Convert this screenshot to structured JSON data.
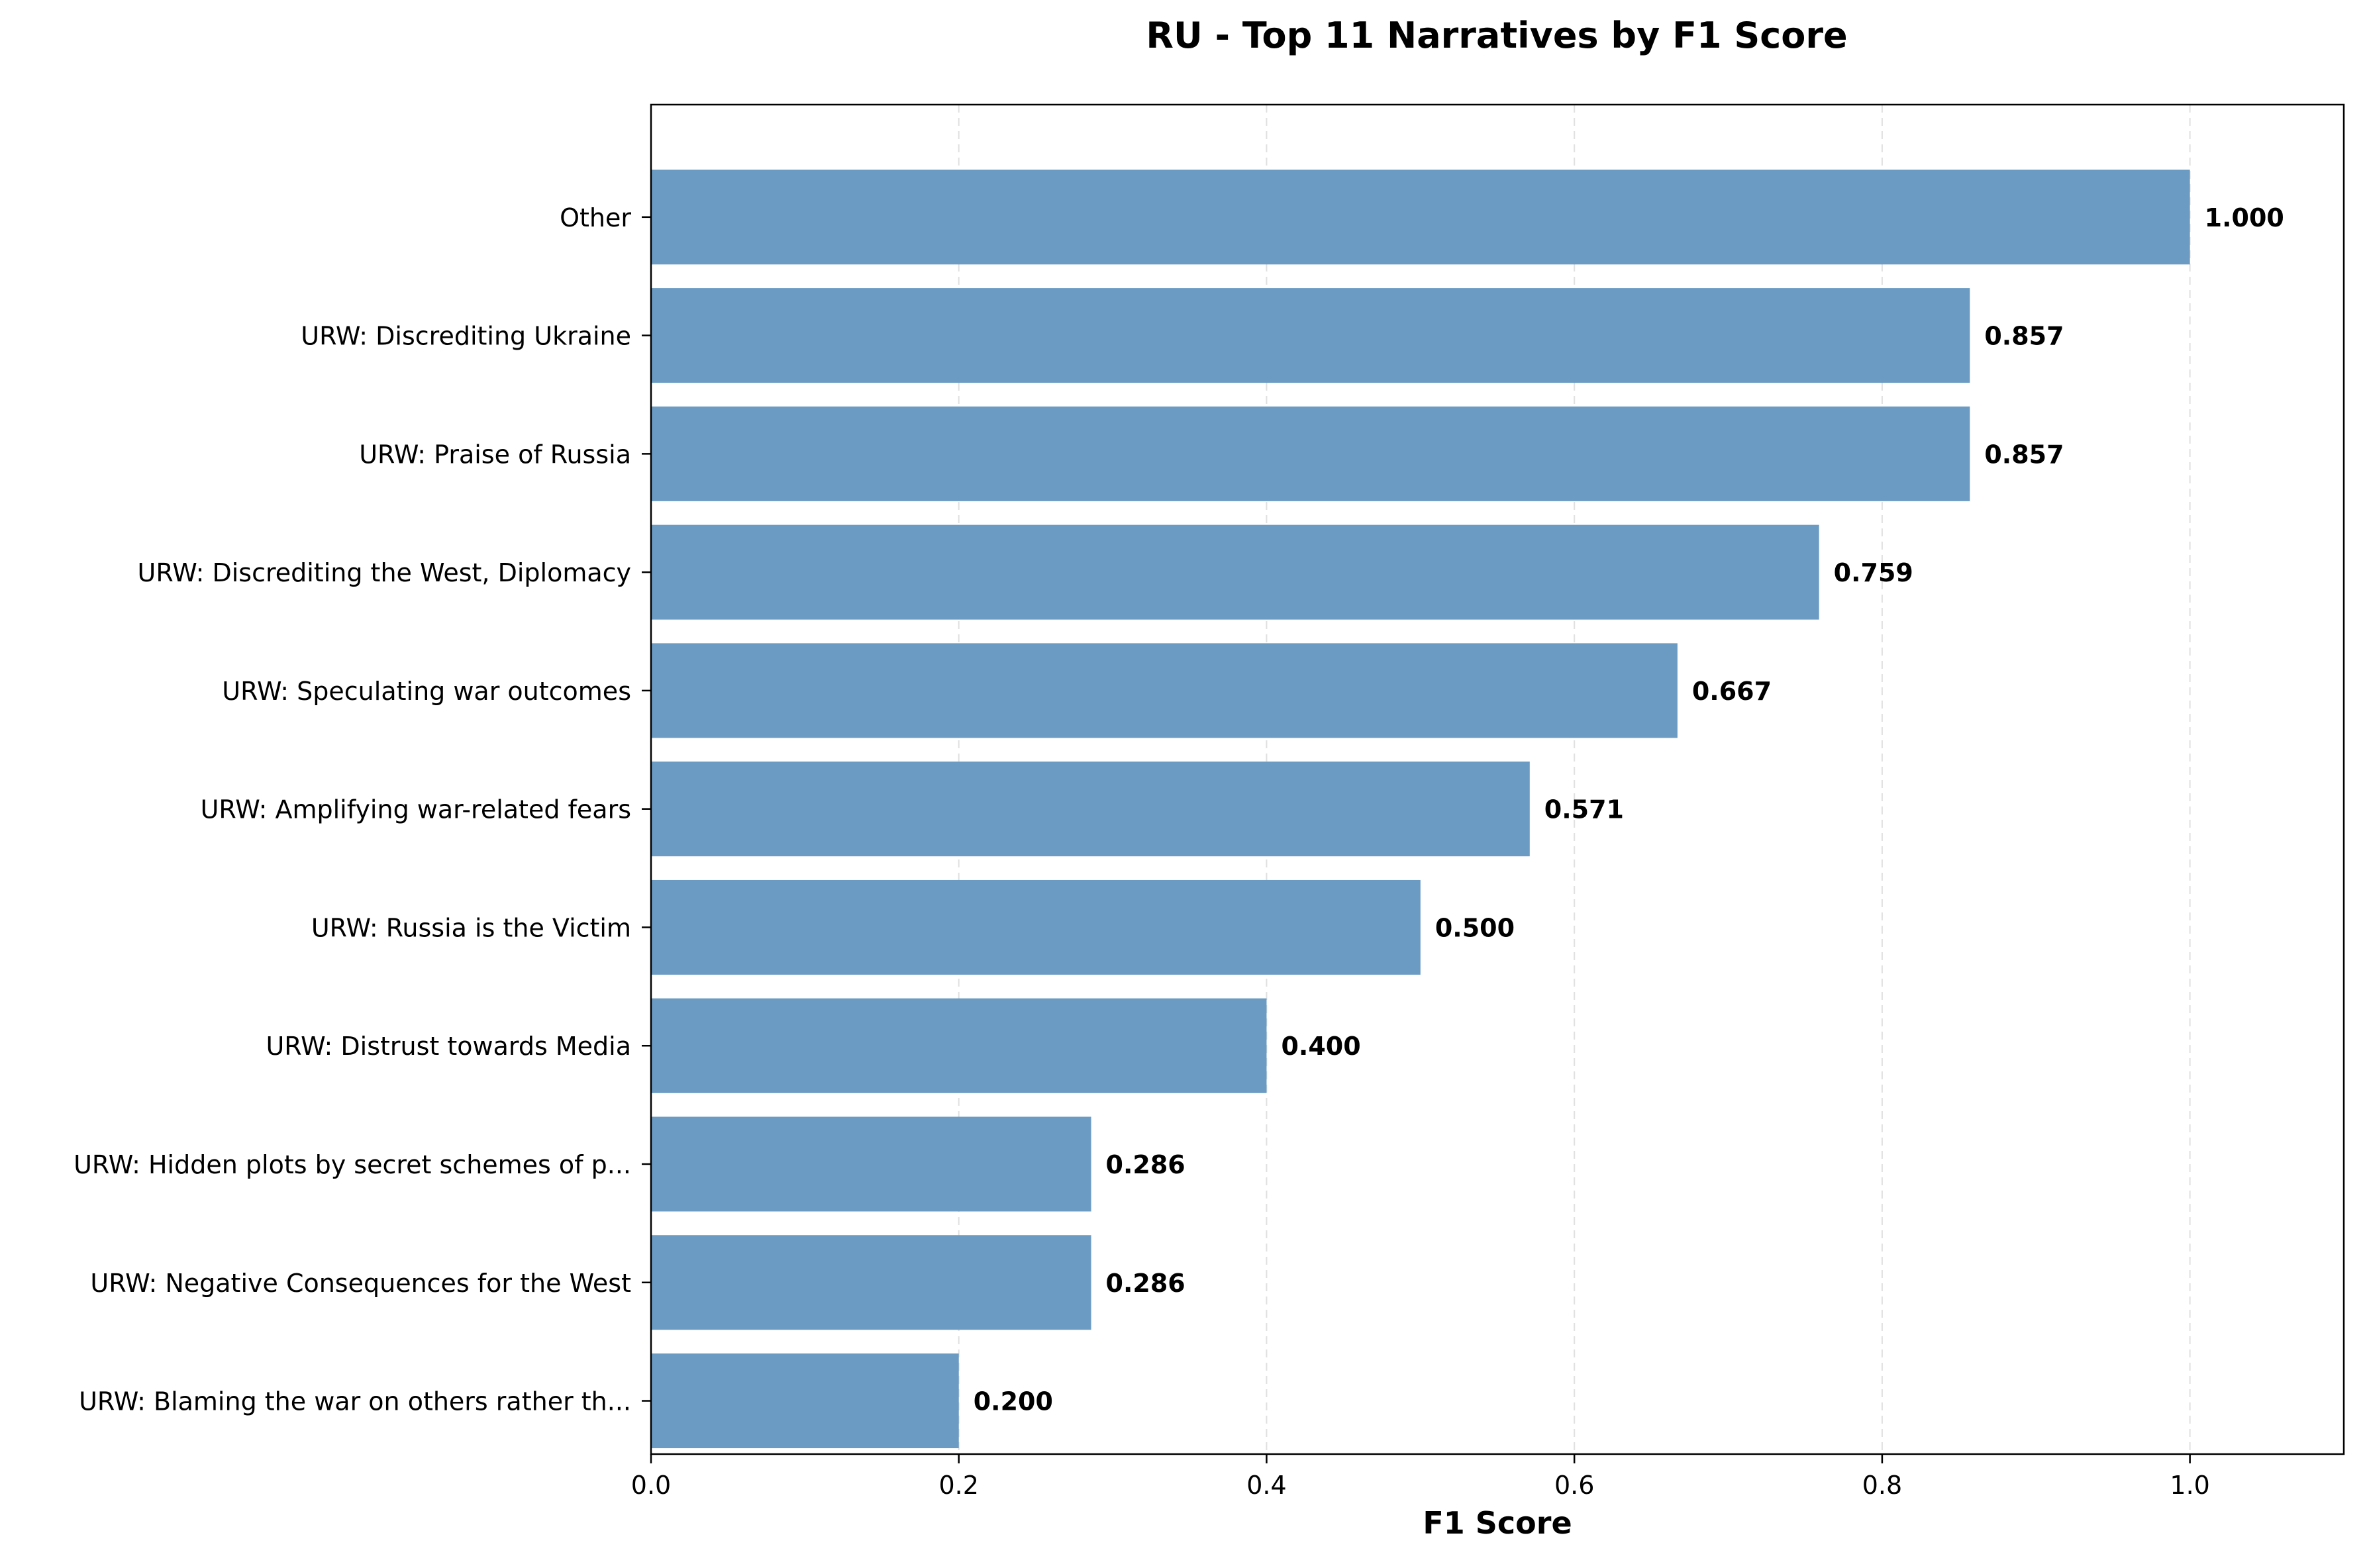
{
  "chart_data": {
    "type": "bar",
    "orientation": "horizontal",
    "title": "RU - Top 11 Narratives by F1 Score",
    "xlabel": "F1 Score",
    "ylabel": "",
    "xlim": [
      0,
      1.1
    ],
    "xticks": [
      0.0,
      0.2,
      0.4,
      0.6,
      0.8,
      1.0
    ],
    "xtick_labels": [
      "0.0",
      "0.2",
      "0.4",
      "0.6",
      "0.8",
      "1.0"
    ],
    "grid": "x-axis dashed",
    "bar_color": "#6b9bc3",
    "categories": [
      "Other",
      "URW: Discrediting Ukraine",
      "URW: Praise of Russia",
      "URW: Discrediting the West, Diplomacy",
      "URW: Speculating war outcomes",
      "URW: Amplifying war-related fears",
      "URW: Russia is the Victim",
      "URW: Distrust towards Media",
      "URW: Hidden plots by secret schemes of p...",
      "URW: Negative Consequences for the West",
      "URW: Blaming the war on others rather th..."
    ],
    "values": [
      1.0,
      0.857,
      0.857,
      0.759,
      0.667,
      0.571,
      0.5,
      0.4,
      0.286,
      0.286,
      0.2
    ],
    "value_labels": [
      "1.000",
      "0.857",
      "0.857",
      "0.759",
      "0.667",
      "0.571",
      "0.500",
      "0.400",
      "0.286",
      "0.286",
      "0.200"
    ]
  }
}
